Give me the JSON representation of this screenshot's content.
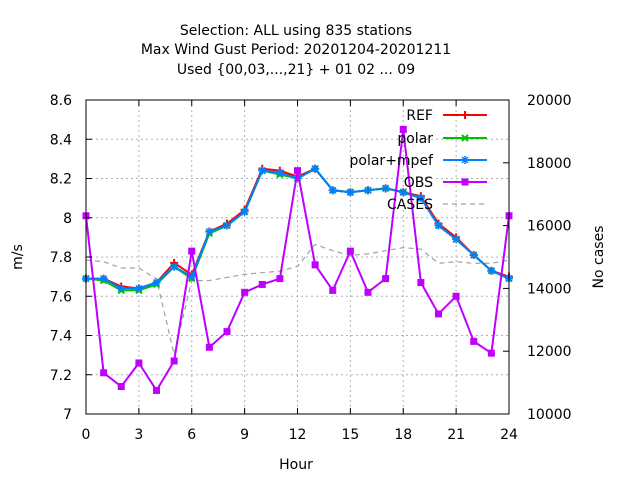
{
  "chart_data": {
    "type": "line",
    "title_lines": [
      "Selection: ALL using   835 stations",
      "Max Wind Gust   Period: 20201204-20201211",
      "Used {00,03,...,21} + 01 02 ... 09"
    ],
    "xlabel": "Hour",
    "ylabel": "m/s",
    "y2label": "No cases",
    "xlim": [
      0,
      24
    ],
    "ylim": [
      7,
      8.6
    ],
    "y2lim": [
      10000,
      20000
    ],
    "xticks": [
      0,
      3,
      6,
      9,
      12,
      15,
      18,
      21,
      24
    ],
    "yticks": [
      7,
      7.2,
      7.4,
      7.6,
      7.8,
      8,
      8.2,
      8.4,
      8.6
    ],
    "y2ticks": [
      10000,
      12000,
      14000,
      16000,
      18000,
      20000
    ],
    "ytick_labels": [
      "7",
      "7.2",
      "7.4",
      "7.6",
      "7.8",
      "8",
      "8.2",
      "8.4",
      "8.6"
    ],
    "grid": true,
    "legend_position": "top-right",
    "x": [
      0,
      1,
      2,
      3,
      4,
      5,
      6,
      7,
      8,
      9,
      10,
      11,
      12,
      13,
      14,
      15,
      16,
      17,
      18,
      19,
      20,
      21,
      22,
      23,
      24
    ],
    "series": [
      {
        "name": "REF",
        "color": "#ff0000",
        "marker": "plus",
        "values": [
          7.69,
          7.69,
          7.65,
          7.64,
          7.67,
          7.77,
          7.71,
          7.93,
          7.97,
          8.04,
          8.25,
          8.24,
          8.21,
          8.25,
          8.14,
          8.13,
          8.14,
          8.15,
          8.13,
          8.11,
          7.97,
          7.9,
          7.81,
          7.73,
          7.7
        ]
      },
      {
        "name": "polar",
        "color": "#00c000",
        "marker": "x",
        "values": [
          7.69,
          7.68,
          7.63,
          7.63,
          7.66,
          7.75,
          7.69,
          7.92,
          7.96,
          8.03,
          8.24,
          8.22,
          8.2,
          8.25,
          8.14,
          8.13,
          8.14,
          8.15,
          8.13,
          8.1,
          7.96,
          7.89,
          7.81,
          7.73,
          7.69
        ]
      },
      {
        "name": "polar+mpef",
        "color": "#0080ff",
        "marker": "star",
        "values": [
          7.69,
          7.69,
          7.64,
          7.64,
          7.67,
          7.75,
          7.7,
          7.93,
          7.96,
          8.03,
          8.24,
          8.23,
          8.2,
          8.25,
          8.14,
          8.13,
          8.14,
          8.15,
          8.13,
          8.1,
          7.96,
          7.89,
          7.81,
          7.73,
          7.69
        ]
      },
      {
        "name": "OBS",
        "color": "#c000ff",
        "marker": "square",
        "values": [
          8.01,
          7.21,
          7.14,
          7.26,
          7.12,
          7.27,
          7.83,
          7.34,
          7.42,
          7.62,
          7.66,
          7.69,
          8.24,
          7.76,
          7.63,
          7.83,
          7.62,
          7.69,
          8.45,
          7.67,
          7.51,
          7.6,
          7.37,
          7.31,
          8.01
        ]
      },
      {
        "name": "CASES",
        "color": "#a0a0a0",
        "marker": "none",
        "dashed": true,
        "axis": "y2",
        "values": [
          14900,
          14850,
          14650,
          14650,
          14300,
          11900,
          14250,
          14250,
          14350,
          14450,
          14500,
          14550,
          14700,
          15400,
          15200,
          15050,
          15100,
          15200,
          15300,
          15250,
          14800,
          14850,
          14800,
          14800,
          14900
        ]
      }
    ]
  }
}
